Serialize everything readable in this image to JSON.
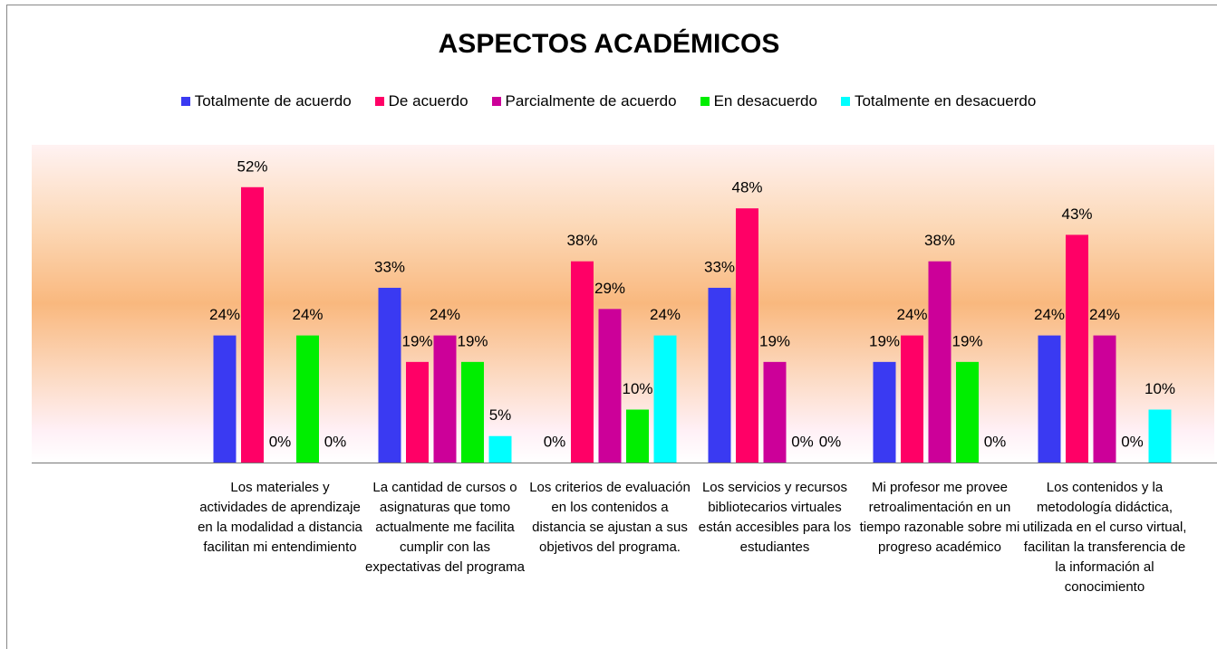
{
  "chart_data": {
    "type": "bar",
    "title": "ASPECTOS ACADÉMICOS",
    "categories": [
      null,
      "Los materiales y actividades de aprendizaje en la modalidad a distancia facilitan mi entendimiento",
      "La cantidad de cursos o asignaturas que tomo actualmente me facilita cumplir con las expectativas del programa",
      "Los criterios de evaluación en los contenidos a distancia se ajustan a sus objetivos del programa.",
      "Los servicios y recursos bibliotecarios virtuales están accesibles para los estudiantes",
      "Mi profesor me provee retroalimentación en un tiempo razonable sobre mi progreso académico",
      "Los contenidos y la metodología didáctica, utilizada en el curso virtual, facilitan la transferencia de la información al conocimiento"
    ],
    "series": [
      {
        "name": "Totalmente de acuerdo",
        "color": "#3a3af2",
        "values": [
          null,
          24,
          33,
          0,
          33,
          19,
          24
        ],
        "value_labels": [
          null,
          "24%",
          "33%",
          "0%",
          "33%",
          "19%",
          "24%"
        ]
      },
      {
        "name": "De acuerdo",
        "color": "#ff0066",
        "values": [
          null,
          52,
          19,
          38,
          48,
          24,
          43
        ],
        "value_labels": [
          null,
          "52%",
          "19%",
          "38%",
          "48%",
          "24%",
          "43%"
        ]
      },
      {
        "name": "Parcialmente de acuerdo",
        "color": "#cc0099",
        "values": [
          null,
          0,
          24,
          29,
          19,
          38,
          24
        ],
        "value_labels": [
          null,
          "0%",
          "24%",
          "29%",
          "19%",
          "38%",
          "24%"
        ]
      },
      {
        "name": "En desacuerdo",
        "color": "#00ee00",
        "values": [
          null,
          24,
          19,
          10,
          0,
          19,
          0
        ],
        "value_labels": [
          null,
          "24%",
          "19%",
          "10%",
          "0%",
          "19%",
          "0%"
        ]
      },
      {
        "name": "Totalmente en desacuerdo",
        "color": "#00ffff",
        "values": [
          null,
          0,
          5,
          24,
          0,
          0,
          10
        ],
        "value_labels": [
          null,
          "0%",
          "5%",
          "24%",
          "0%",
          "0%",
          "10%"
        ]
      }
    ],
    "ylim": [
      0,
      60
    ],
    "legend": "top"
  }
}
